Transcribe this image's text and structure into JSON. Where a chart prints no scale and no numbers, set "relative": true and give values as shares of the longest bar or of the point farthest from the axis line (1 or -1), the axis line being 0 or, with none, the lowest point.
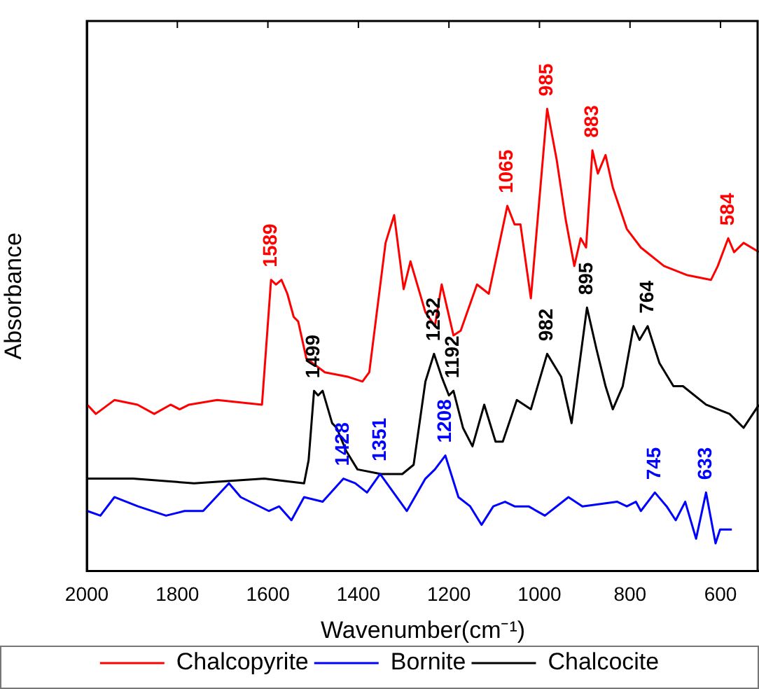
{
  "chart_data": {
    "type": "line",
    "relative": true,
    "xlabel": "Wavenumber(cm⁻¹)",
    "ylabel": "Absorbance",
    "xlim": [
      2000,
      515
    ],
    "xticks": [
      2000,
      1800,
      1600,
      1400,
      1200,
      1000,
      800,
      600
    ],
    "legend": "bottom",
    "grid": false,
    "marker": "none",
    "line_style": "solid",
    "series": [
      {
        "name": "Chalcopyrite",
        "color": "#ff0000",
        "x": [
          1999,
          1980,
          1939,
          1888,
          1851,
          1815,
          1795,
          1774,
          1712,
          1613,
          1593,
          1582,
          1570,
          1557,
          1543,
          1533,
          1515,
          1474,
          1422,
          1391,
          1376,
          1340,
          1321,
          1300,
          1285,
          1252,
          1231,
          1216,
          1190,
          1174,
          1138,
          1112,
          1071,
          1055,
          1042,
          1019,
          983,
          962,
          942,
          923,
          909,
          897,
          883,
          871,
          854,
          838,
          807,
          776,
          725,
          673,
          621,
          606,
          583,
          570,
          549,
          515
        ],
        "values": [
          0.36,
          0.34,
          0.37,
          0.36,
          0.34,
          0.36,
          0.35,
          0.36,
          0.37,
          0.36,
          0.63,
          0.62,
          0.63,
          0.6,
          0.55,
          0.54,
          0.46,
          0.43,
          0.42,
          0.41,
          0.43,
          0.71,
          0.77,
          0.61,
          0.67,
          0.56,
          0.53,
          0.62,
          0.51,
          0.52,
          0.62,
          0.6,
          0.79,
          0.75,
          0.75,
          0.59,
          1,
          0.89,
          0.76,
          0.66,
          0.72,
          0.7,
          0.91,
          0.86,
          0.9,
          0.83,
          0.74,
          0.7,
          0.66,
          0.64,
          0.63,
          0.66,
          0.72,
          0.69,
          0.71,
          0.69
        ]
      },
      {
        "name": "Bornite",
        "color": "#0000ff",
        "x": [
          1999,
          1970,
          1939,
          1887,
          1825,
          1784,
          1743,
          1686,
          1660,
          1598,
          1575,
          1548,
          1520,
          1479,
          1433,
          1407,
          1381,
          1352,
          1293,
          1252,
          1231,
          1208,
          1179,
          1153,
          1128,
          1102,
          1076,
          1055,
          1024,
          988,
          936,
          905,
          828,
          807,
          787,
          776,
          745,
          719,
          699,
          678,
          654,
          632,
          611,
          601,
          575
        ],
        "values": [
          0.13,
          0.12,
          0.16,
          0.14,
          0.12,
          0.13,
          0.13,
          0.19,
          0.16,
          0.13,
          0.14,
          0.11,
          0.16,
          0.15,
          0.2,
          0.19,
          0.17,
          0.21,
          0.13,
          0.2,
          0.22,
          0.25,
          0.16,
          0.14,
          0.1,
          0.14,
          0.15,
          0.14,
          0.14,
          0.12,
          0.16,
          0.14,
          0.15,
          0.14,
          0.15,
          0.13,
          0.17,
          0.14,
          0.11,
          0.15,
          0.07,
          0.17,
          0.06,
          0.09,
          0.09
        ]
      },
      {
        "name": "Chalcocite",
        "color": "#000000",
        "x": [
          1999,
          1898,
          1763,
          1608,
          1520,
          1510,
          1498,
          1489,
          1479,
          1458,
          1448,
          1427,
          1402,
          1350,
          1303,
          1278,
          1252,
          1233,
          1216,
          1200,
          1190,
          1169,
          1148,
          1122,
          1097,
          1081,
          1050,
          1019,
          983,
          952,
          929,
          895,
          874,
          854,
          838,
          816,
          792,
          779,
          761,
          735,
          704,
          683,
          632,
          580,
          549,
          515
        ],
        "values": [
          0.2,
          0.2,
          0.19,
          0.2,
          0.19,
          0.24,
          0.39,
          0.38,
          0.39,
          0.32,
          0.31,
          0.26,
          0.22,
          0.21,
          0.21,
          0.23,
          0.41,
          0.47,
          0.42,
          0.38,
          0.39,
          0.31,
          0.27,
          0.36,
          0.28,
          0.28,
          0.37,
          0.35,
          0.47,
          0.42,
          0.32,
          0.57,
          0.48,
          0.4,
          0.35,
          0.4,
          0.53,
          0.5,
          0.53,
          0.45,
          0.4,
          0.4,
          0.36,
          0.34,
          0.31,
          0.36
        ]
      }
    ],
    "annotations": [
      {
        "text": "1589",
        "x": 1593,
        "y": 0.63
      },
      {
        "text": "1499",
        "x": 1498,
        "y": 0.39
      },
      {
        "text": "1428",
        "x": 1433,
        "y": 0.2
      },
      {
        "text": "1351",
        "x": 1352,
        "y": 0.21
      },
      {
        "text": "1232",
        "x": 1233,
        "y": 0.47
      },
      {
        "text": "1192",
        "x": 1190,
        "y": 0.39
      },
      {
        "text": "1208",
        "x": 1208,
        "y": 0.25
      },
      {
        "text": "1065",
        "x": 1071,
        "y": 0.79
      },
      {
        "text": "985",
        "x": 983,
        "y": 1
      },
      {
        "text": "982",
        "x": 983,
        "y": 0.47
      },
      {
        "text": "895",
        "x": 895,
        "y": 0.57
      },
      {
        "text": "883",
        "x": 883,
        "y": 0.91
      },
      {
        "text": "764",
        "x": 761,
        "y": 0.53
      },
      {
        "text": "745",
        "x": 745,
        "y": 0.17
      },
      {
        "text": "633",
        "x": 632,
        "y": 0.17
      },
      {
        "text": "584",
        "x": 583,
        "y": 0.72
      }
    ]
  }
}
